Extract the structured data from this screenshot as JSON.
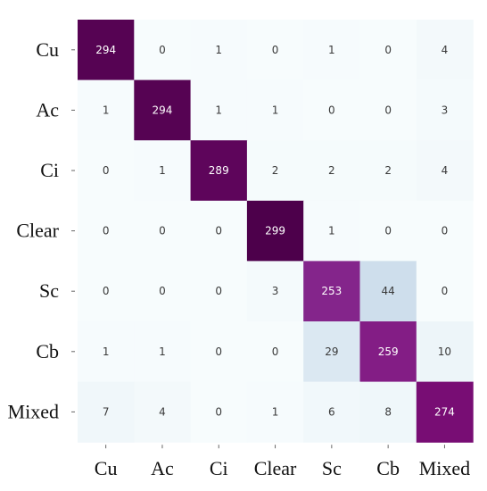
{
  "chart_data": {
    "type": "heatmap",
    "title": "",
    "xlabel": "",
    "ylabel": "",
    "x_categories": [
      "Cu",
      "Ac",
      "Ci",
      "Clear",
      "Sc",
      "Cb",
      "Mixed"
    ],
    "y_categories": [
      "Cu",
      "Ac",
      "Ci",
      "Clear",
      "Sc",
      "Cb",
      "Mixed"
    ],
    "matrix": [
      [
        294,
        0,
        1,
        0,
        1,
        0,
        4
      ],
      [
        1,
        294,
        1,
        1,
        0,
        0,
        3
      ],
      [
        0,
        1,
        289,
        2,
        2,
        2,
        4
      ],
      [
        0,
        0,
        0,
        299,
        1,
        0,
        0
      ],
      [
        0,
        0,
        0,
        3,
        253,
        44,
        0
      ],
      [
        1,
        1,
        0,
        0,
        29,
        259,
        10
      ],
      [
        7,
        4,
        0,
        1,
        6,
        8,
        274
      ]
    ],
    "value_range": [
      0,
      299
    ],
    "colormap": "BuPu",
    "colors": {
      "low": "#f7fcfd",
      "high": "#4d004b",
      "text_dark": "#3a3a3a",
      "text_light": "#ffffff"
    },
    "colorbar": false,
    "grid": false
  }
}
